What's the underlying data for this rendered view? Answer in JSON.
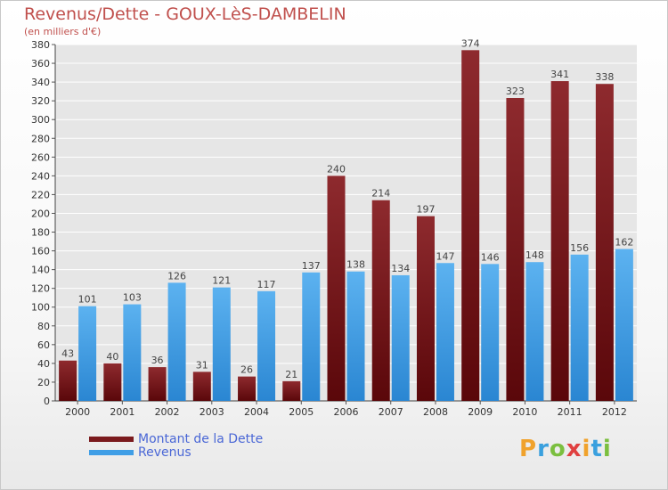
{
  "chart_data": {
    "type": "bar",
    "title": "Revenus/Dette - GOUX-LèS-DAMBELIN",
    "subtitle": "(en milliers d'€)",
    "categories": [
      "2000",
      "2001",
      "2002",
      "2003",
      "2004",
      "2005",
      "2006",
      "2007",
      "2008",
      "2009",
      "2010",
      "2011",
      "2012"
    ],
    "series": [
      {
        "name": "Montant de la Dette",
        "color": "#7a1a1d",
        "values": [
          43,
          40,
          36,
          31,
          26,
          21,
          240,
          214,
          197,
          374,
          323,
          341,
          338
        ]
      },
      {
        "name": "Revenus",
        "color": "#3f9ee6",
        "values": [
          101,
          103,
          126,
          121,
          117,
          137,
          138,
          134,
          147,
          146,
          148,
          156,
          162
        ]
      }
    ],
    "ylim": [
      0,
      380
    ],
    "ytick_step": 20,
    "grid": true,
    "legend_position": "bottom-left"
  },
  "brand": {
    "letters": [
      "P",
      "r",
      "o",
      "x",
      "i",
      "t",
      "i"
    ],
    "colors": [
      "#f0a22c",
      "#3aa0de",
      "#7bbf3f",
      "#e04040",
      "#f0a22c",
      "#3aa0de",
      "#7bbf3f"
    ]
  }
}
